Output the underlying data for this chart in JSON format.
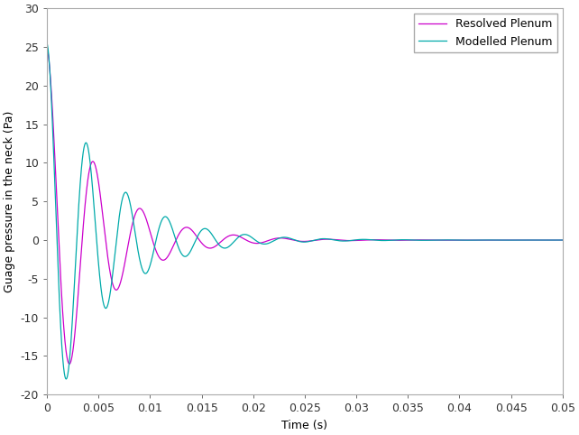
{
  "title": "",
  "xlabel": "Time (s)",
  "ylabel": "Guage pressure in the neck (Pa)",
  "xlim": [
    0,
    0.05
  ],
  "ylim": [
    -20,
    30
  ],
  "xticks": [
    0,
    0.005,
    0.01,
    0.015,
    0.02,
    0.025,
    0.03,
    0.035,
    0.04,
    0.045,
    0.05
  ],
  "yticks": [
    -20,
    -15,
    -10,
    -5,
    0,
    5,
    10,
    15,
    20,
    25,
    30
  ],
  "resolved_color": "#cc00cc",
  "modelled_color": "#00aaaa",
  "legend_labels": [
    "Resolved Plenum",
    "Modelled Plenum"
  ],
  "background_color": "#ffffff",
  "font_size": 9,
  "linewidth": 0.9,
  "resolved_amplitude": 25.0,
  "resolved_decay": 200,
  "resolved_freq": 220,
  "resolved_phase": 1.5707963,
  "modelled_amplitude": 25.5,
  "modelled_decay": 185,
  "modelled_freq": 260,
  "modelled_phase": 1.5707963
}
